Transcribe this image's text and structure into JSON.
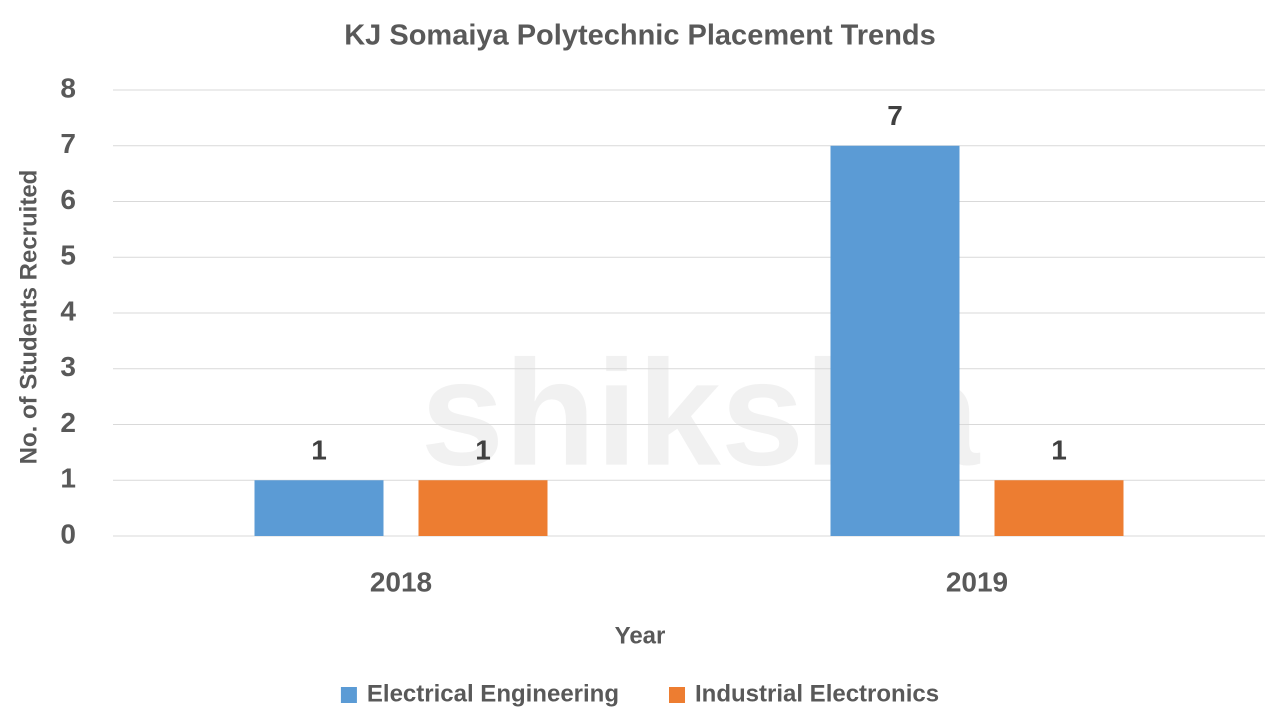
{
  "chart_data": {
    "type": "bar",
    "title": "KJ Somaiya Polytechnic Placement Trends",
    "watermark": "shiksha",
    "x_label": "Year",
    "y_label": "No. of Students Recruited",
    "categories": [
      "2018",
      "2019"
    ],
    "series": [
      {
        "name": "Electrical Engineering",
        "color": "#5b9bd5",
        "values": [
          1,
          7
        ]
      },
      {
        "name": "Industrial Electronics",
        "color": "#ed7d31",
        "values": [
          1,
          1
        ]
      }
    ],
    "ylim": [
      0,
      8
    ],
    "yticks": [
      0,
      1,
      2,
      3,
      4,
      5,
      6,
      7,
      8
    ],
    "grid": true,
    "legend": "bottom"
  }
}
